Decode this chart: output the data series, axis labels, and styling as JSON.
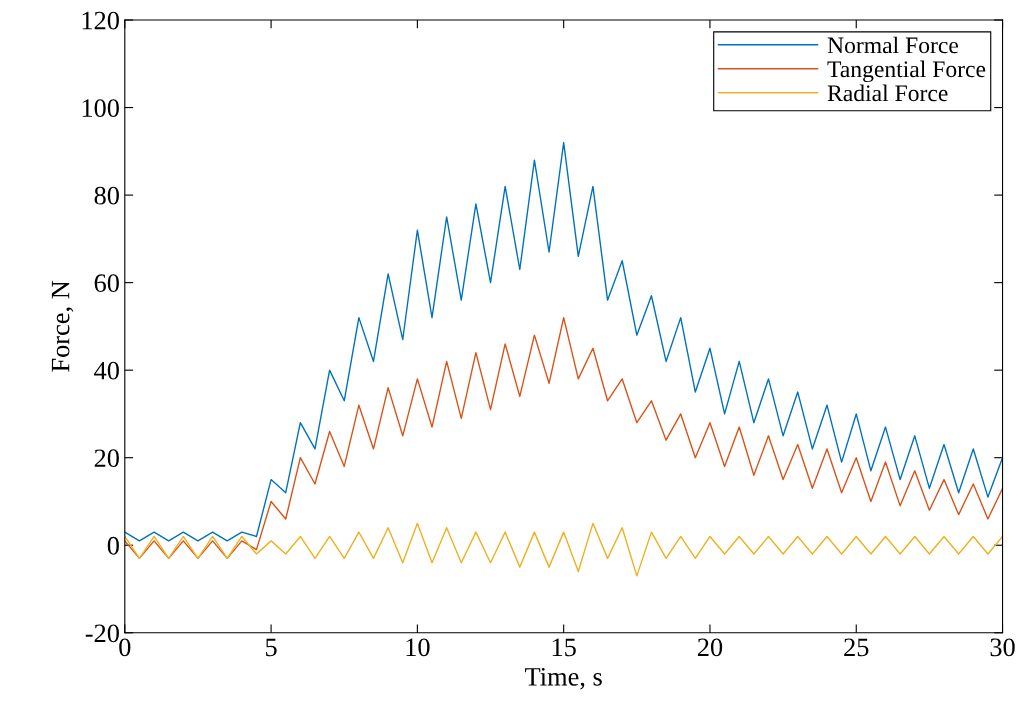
{
  "chart_data": {
    "type": "line",
    "xlabel": "Time, s",
    "ylabel": "Force, N",
    "x": [
      0,
      0.5,
      1,
      1.5,
      2,
      2.5,
      3,
      3.5,
      4,
      4.5,
      5,
      5.5,
      6,
      6.5,
      7,
      7.5,
      8,
      8.5,
      9,
      9.5,
      10,
      10.5,
      11,
      11.5,
      12,
      12.5,
      13,
      13.5,
      14,
      14.5,
      15,
      15.5,
      16,
      16.5,
      17,
      17.5,
      18,
      18.5,
      19,
      19.5,
      20,
      20.5,
      21,
      21.5,
      22,
      22.5,
      23,
      23.5,
      24,
      24.5,
      25,
      25.5,
      26,
      26.5,
      27,
      27.5,
      28,
      28.5,
      29,
      29.5,
      30
    ],
    "series": [
      {
        "name": "Normal Force",
        "color": "#0072bd",
        "values": [
          3,
          1,
          3,
          1,
          3,
          1,
          3,
          1,
          3,
          2,
          15,
          12,
          28,
          22,
          40,
          33,
          52,
          42,
          62,
          47,
          72,
          52,
          75,
          56,
          78,
          60,
          82,
          63,
          88,
          67,
          92,
          66,
          82,
          56,
          65,
          48,
          57,
          42,
          52,
          35,
          45,
          30,
          42,
          28,
          38,
          25,
          35,
          22,
          32,
          19,
          30,
          17,
          27,
          15,
          25,
          13,
          23,
          12,
          22,
          11,
          20
        ]
      },
      {
        "name": "Tangential Force",
        "color": "#d95319",
        "values": [
          1,
          -3,
          1,
          -3,
          1,
          -3,
          1,
          -3,
          1,
          -1,
          10,
          6,
          20,
          14,
          26,
          18,
          32,
          22,
          36,
          25,
          38,
          27,
          42,
          29,
          44,
          31,
          46,
          34,
          48,
          37,
          52,
          38,
          45,
          33,
          38,
          28,
          33,
          24,
          30,
          20,
          28,
          18,
          27,
          16,
          25,
          15,
          23,
          13,
          22,
          12,
          20,
          10,
          19,
          9,
          17,
          8,
          15,
          7,
          14,
          6,
          13
        ]
      },
      {
        "name": "Radial Force",
        "color": "#edb120",
        "values": [
          2,
          -3,
          2,
          -3,
          2,
          -3,
          2,
          -3,
          2,
          -2,
          1,
          -2,
          2,
          -3,
          2,
          -3,
          3,
          -3,
          4,
          -4,
          5,
          -4,
          4,
          -4,
          3,
          -4,
          3,
          -5,
          3,
          -5,
          3,
          -6,
          5,
          -3,
          4,
          -7,
          3,
          -3,
          2,
          -3,
          2,
          -2,
          2,
          -2,
          2,
          -2,
          2,
          -2,
          2,
          -2,
          2,
          -2,
          2,
          -2,
          2,
          -2,
          2,
          -2,
          2,
          -2,
          2
        ]
      }
    ],
    "xlim": [
      0,
      30
    ],
    "xticks": [
      0,
      5,
      10,
      15,
      20,
      25,
      30
    ],
    "ylim": [
      -20,
      120
    ],
    "yticks": [
      -20,
      0,
      20,
      40,
      60,
      80,
      100,
      120
    ],
    "grid": false,
    "legend": "top right",
    "marker": "none",
    "line_style": "solid"
  }
}
